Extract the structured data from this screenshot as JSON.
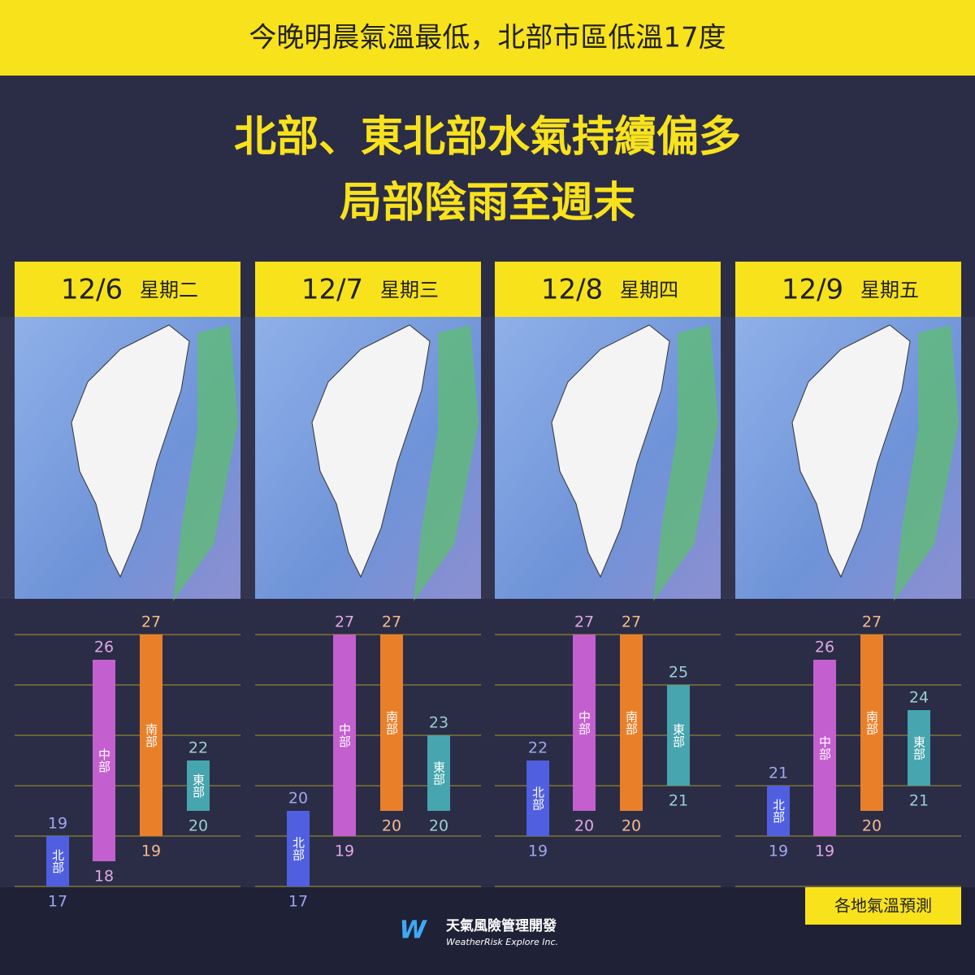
{
  "header": "今晚明晨氣溫最低，北部市區低溫17度",
  "title": [
    "北部、東北部水氣持續偏多",
    "局部陰雨至週末"
  ],
  "chart_data": [
    {
      "type": "range_bar",
      "title": "12/6",
      "subtitle": "星期二",
      "categories": [
        "北部",
        "中部",
        "南部",
        "東部"
      ],
      "low": [
        17,
        18,
        19,
        20
      ],
      "high": [
        19,
        26,
        27,
        22
      ],
      "colors": [
        "#4f5fe0",
        "#c45fd0",
        "#ea7f2a",
        "#46a5ae"
      ],
      "ylim": [
        16,
        28
      ],
      "yticks": [
        17,
        19,
        21,
        23,
        25,
        27
      ],
      "grid": true
    },
    {
      "type": "range_bar",
      "title": "12/7",
      "subtitle": "星期三",
      "categories": [
        "北部",
        "中部",
        "南部",
        "東部"
      ],
      "low": [
        17,
        19,
        20,
        20
      ],
      "high": [
        20,
        27,
        27,
        23
      ],
      "colors": [
        "#4f5fe0",
        "#c45fd0",
        "#ea7f2a",
        "#46a5ae"
      ],
      "ylim": [
        16,
        28
      ],
      "yticks": [
        17,
        19,
        21,
        23,
        25,
        27
      ],
      "grid": true
    },
    {
      "type": "range_bar",
      "title": "12/8",
      "subtitle": "星期四",
      "categories": [
        "北部",
        "中部",
        "南部",
        "東部"
      ],
      "low": [
        19,
        20,
        20,
        21
      ],
      "high": [
        22,
        27,
        27,
        25
      ],
      "colors": [
        "#4f5fe0",
        "#c45fd0",
        "#ea7f2a",
        "#46a5ae"
      ],
      "ylim": [
        16,
        28
      ],
      "yticks": [
        17,
        19,
        21,
        23,
        25,
        27
      ],
      "grid": true
    },
    {
      "type": "range_bar",
      "title": "12/9",
      "subtitle": "星期五",
      "categories": [
        "北部",
        "中部",
        "南部",
        "東部"
      ],
      "low": [
        19,
        19,
        20,
        21
      ],
      "high": [
        21,
        26,
        27,
        24
      ],
      "colors": [
        "#4f5fe0",
        "#c45fd0",
        "#ea7f2a",
        "#46a5ae"
      ],
      "ylim": [
        16,
        28
      ],
      "yticks": [
        17,
        19,
        21,
        23,
        25,
        27
      ],
      "grid": true
    }
  ],
  "footer_badge": "各地氣溫預測",
  "logo": {
    "name": "天氣風險管理開發",
    "subtitle": "WeatherRisk Explore Inc."
  }
}
